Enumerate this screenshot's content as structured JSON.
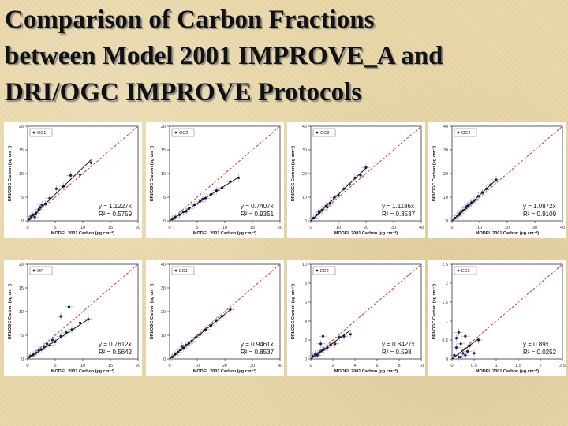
{
  "title_lines": [
    "Comparison of Carbon Fractions",
    "between Model 2001 IMPROVE_A and",
    "DRI/OGC IMPROVE Protocols"
  ],
  "colors": {
    "one_to_one": "#d11a1a",
    "fit": "#000000",
    "points": "#1a1f6b",
    "error_bars": "#9a9a9a"
  },
  "chart_data": [
    {
      "type": "scatter",
      "legend": "OC1",
      "xlabel": "MODEL 2001 Carbon (µg cm⁻²)",
      "ylabel": "DRI/OGC Carbon (µg cm⁻²)",
      "xlim": [
        0,
        20
      ],
      "ylim": [
        0,
        20
      ],
      "xticks": [
        0,
        5,
        10,
        15,
        20
      ],
      "yticks": [
        0,
        5,
        10,
        15,
        20
      ],
      "fit_equation": "y = 1.1227x",
      "r2": "R² = 0.5759",
      "slope": 1.1227,
      "points": [
        [
          0.3,
          0.4
        ],
        [
          0.6,
          0.9
        ],
        [
          1.0,
          1.3
        ],
        [
          1.5,
          1.6
        ],
        [
          2.0,
          2.4
        ],
        [
          2.6,
          3.4
        ],
        [
          3.2,
          3.6
        ],
        [
          4.0,
          4.8
        ],
        [
          5.2,
          6.8
        ],
        [
          6.5,
          7.3
        ],
        [
          7.8,
          9.6
        ],
        [
          9.5,
          9.8
        ],
        [
          11.5,
          12.3
        ],
        [
          1.3,
          0.8
        ],
        [
          2.3,
          2.9
        ]
      ],
      "legend_pos": "top-left",
      "grid": false
    },
    {
      "type": "scatter",
      "legend": "OC2",
      "xlabel": "MODEL 2001 Carbon (µg cm⁻²)",
      "ylabel": "DRI/OGC Carbon (µg cm⁻²)",
      "xlim": [
        0,
        20
      ],
      "ylim": [
        0,
        20
      ],
      "xticks": [
        0,
        5,
        10,
        15,
        20
      ],
      "yticks": [
        0,
        5,
        10,
        15,
        20
      ],
      "fit_equation": "y = 0.7407x",
      "r2": "R² = 0.9351",
      "slope": 0.7407,
      "points": [
        [
          0.5,
          0.4
        ],
        [
          1.0,
          0.8
        ],
        [
          1.8,
          1.3
        ],
        [
          2.5,
          1.9
        ],
        [
          3.5,
          2.6
        ],
        [
          4.5,
          3.4
        ],
        [
          5.5,
          4.1
        ],
        [
          6.5,
          4.8
        ],
        [
          7.5,
          5.6
        ],
        [
          8.5,
          6.4
        ],
        [
          9.5,
          7.0
        ],
        [
          11.0,
          8.3
        ],
        [
          12.5,
          9.1
        ],
        [
          3.0,
          2.0
        ],
        [
          6.0,
          4.6
        ]
      ],
      "legend_pos": "top-left",
      "grid": false
    },
    {
      "type": "scatter",
      "legend": "OC3",
      "xlabel": "MODEL 2001 Carbon (µg cm⁻²)",
      "ylabel": "DRI/OGC Carbon (µg cm⁻²)",
      "xlim": [
        0,
        40
      ],
      "ylim": [
        0,
        40
      ],
      "xticks": [
        0,
        10,
        20,
        30,
        40
      ],
      "yticks": [
        0,
        10,
        20,
        30,
        40
      ],
      "fit_equation": "y = 1.1186x",
      "r2": "R² = 0.8537",
      "slope": 1.1186,
      "points": [
        [
          1,
          1.2
        ],
        [
          2,
          2.5
        ],
        [
          3,
          3.4
        ],
        [
          4,
          4.6
        ],
        [
          5.5,
          6.3
        ],
        [
          7,
          7.6
        ],
        [
          8.5,
          9.8
        ],
        [
          10,
          10.9
        ],
        [
          12,
          13.6
        ],
        [
          14,
          15.4
        ],
        [
          16,
          18.2
        ],
        [
          18,
          19.3
        ],
        [
          20,
          22.6
        ],
        [
          6,
          5.8
        ],
        [
          3,
          4.0
        ]
      ],
      "legend_pos": "top-left",
      "grid": false
    },
    {
      "type": "scatter",
      "legend": "OC4",
      "xlabel": "MODEL 2001 Carbon (µg cm⁻²)",
      "ylabel": "DRI/OGC Carbon (µg cm⁻²)",
      "xlim": [
        0,
        40
      ],
      "ylim": [
        0,
        40
      ],
      "xticks": [
        0,
        10,
        20,
        30,
        40
      ],
      "yticks": [
        0,
        10,
        20,
        30,
        40
      ],
      "fit_equation": "y = 1.0872x",
      "r2": "R² = 0.9109",
      "slope": 1.0872,
      "points": [
        [
          1,
          1.1
        ],
        [
          2,
          2.2
        ],
        [
          3,
          3.3
        ],
        [
          4,
          4.4
        ],
        [
          5,
          5.4
        ],
        [
          6,
          6.6
        ],
        [
          7,
          7.7
        ],
        [
          8,
          8.6
        ],
        [
          9.5,
          10.4
        ],
        [
          11,
          12.0
        ],
        [
          12.5,
          13.6
        ],
        [
          14,
          15.3
        ],
        [
          16,
          17.4
        ],
        [
          2.5,
          2.6
        ],
        [
          5.5,
          6.2
        ]
      ],
      "legend_pos": "top-left",
      "grid": false
    },
    {
      "type": "scatter",
      "legend": "OP",
      "xlabel": "MODEL 2001 Carbon (µg cm⁻²)",
      "ylabel": "DRI/OGC Carbon (µg cm⁻²)",
      "xlim": [
        0,
        20
      ],
      "ylim": [
        0,
        20
      ],
      "xticks": [
        0,
        5,
        10,
        15,
        20
      ],
      "yticks": [
        0,
        5,
        10,
        15,
        20
      ],
      "fit_equation": "y = 0.7612x",
      "r2": "R² = 0.5642",
      "slope": 0.7612,
      "points": [
        [
          0.5,
          0.6
        ],
        [
          1.0,
          0.9
        ],
        [
          1.5,
          1.3
        ],
        [
          2.0,
          1.8
        ],
        [
          2.5,
          2.0
        ],
        [
          3.0,
          2.6
        ],
        [
          3.5,
          3.2
        ],
        [
          4.0,
          2.9
        ],
        [
          4.5,
          4.0
        ],
        [
          5.0,
          3.6
        ],
        [
          6.0,
          4.8
        ],
        [
          7.0,
          5.6
        ],
        [
          8.0,
          6.2
        ],
        [
          9.5,
          7.6
        ],
        [
          11.0,
          8.4
        ],
        [
          7.5,
          11.0
        ],
        [
          6.0,
          9.0
        ]
      ],
      "legend_pos": "top-left",
      "grid": false
    },
    {
      "type": "scatter",
      "legend": "EC1",
      "xlabel": "MODEL 2001 Carbon (µg cm⁻²)",
      "ylabel": "DRI/OGC Carbon (µg cm⁻²)",
      "xlim": [
        0,
        40
      ],
      "ylim": [
        0,
        40
      ],
      "xticks": [
        0,
        10,
        20,
        30,
        40
      ],
      "yticks": [
        0,
        10,
        20,
        30,
        40
      ],
      "fit_equation": "y = 0.9461x",
      "r2": "R² = 0.8537",
      "slope": 0.9461,
      "points": [
        [
          1,
          0.9
        ],
        [
          2,
          1.9
        ],
        [
          3,
          2.8
        ],
        [
          4,
          3.8
        ],
        [
          5,
          4.7
        ],
        [
          6,
          5.8
        ],
        [
          7,
          6.6
        ],
        [
          8,
          7.5
        ],
        [
          9.5,
          9.1
        ],
        [
          11,
          10.3
        ],
        [
          13,
          12.4
        ],
        [
          15,
          14.1
        ],
        [
          17,
          16.3
        ],
        [
          19,
          18.0
        ],
        [
          22,
          20.9
        ],
        [
          4.5,
          5.4
        ]
      ],
      "legend_pos": "top-left",
      "grid": false
    },
    {
      "type": "scatter",
      "legend": "EC2",
      "xlabel": "MODEL 2001 Carbon (µg cm⁻²)",
      "ylabel": "DRI/OGC Carbon (µg cm⁻²)",
      "xlim": [
        0,
        10
      ],
      "ylim": [
        0,
        10
      ],
      "xticks": [
        0,
        2,
        4,
        6,
        8,
        10
      ],
      "yticks": [
        0,
        2,
        4,
        6,
        8,
        10
      ],
      "fit_equation": "y = 0.8427x",
      "r2": "R² = 0.598",
      "slope": 0.8427,
      "points": [
        [
          0.2,
          0.3
        ],
        [
          0.4,
          0.5
        ],
        [
          0.6,
          0.4
        ],
        [
          0.8,
          0.7
        ],
        [
          1.0,
          0.9
        ],
        [
          1.2,
          1.0
        ],
        [
          1.5,
          1.2
        ],
        [
          1.8,
          1.5
        ],
        [
          2.2,
          1.6
        ],
        [
          2.6,
          2.3
        ],
        [
          3.0,
          2.4
        ],
        [
          3.6,
          2.6
        ],
        [
          1.1,
          2.4
        ],
        [
          0.9,
          1.6
        ]
      ],
      "legend_pos": "top-left",
      "grid": false
    },
    {
      "type": "scatter",
      "legend": "EC3",
      "xlabel": "MODEL 2001 Carbon (µg cm⁻²)",
      "ylabel": "DRI/OGC Carbon (µg cm⁻²)",
      "xlim": [
        0,
        2.5
      ],
      "ylim": [
        0,
        2.5
      ],
      "xticks": [
        0,
        0.5,
        1.0,
        1.5,
        2.0,
        2.5
      ],
      "yticks": [
        0,
        0.5,
        1.0,
        1.5,
        2.0,
        2.5
      ],
      "fit_equation": "y = 0.89x",
      "r2": "R² = 0.0252",
      "slope": 0.89,
      "points": [
        [
          0.05,
          0.1
        ],
        [
          0.1,
          0.3
        ],
        [
          0.15,
          0.05
        ],
        [
          0.2,
          0.4
        ],
        [
          0.25,
          0.15
        ],
        [
          0.3,
          0.6
        ],
        [
          0.35,
          0.2
        ],
        [
          0.1,
          0.55
        ],
        [
          0.2,
          0.05
        ],
        [
          0.4,
          0.35
        ],
        [
          0.5,
          0.15
        ],
        [
          0.6,
          0.5
        ],
        [
          0.15,
          0.7
        ],
        [
          0.3,
          0.1
        ]
      ],
      "legend_pos": "top-left",
      "grid": false
    }
  ]
}
